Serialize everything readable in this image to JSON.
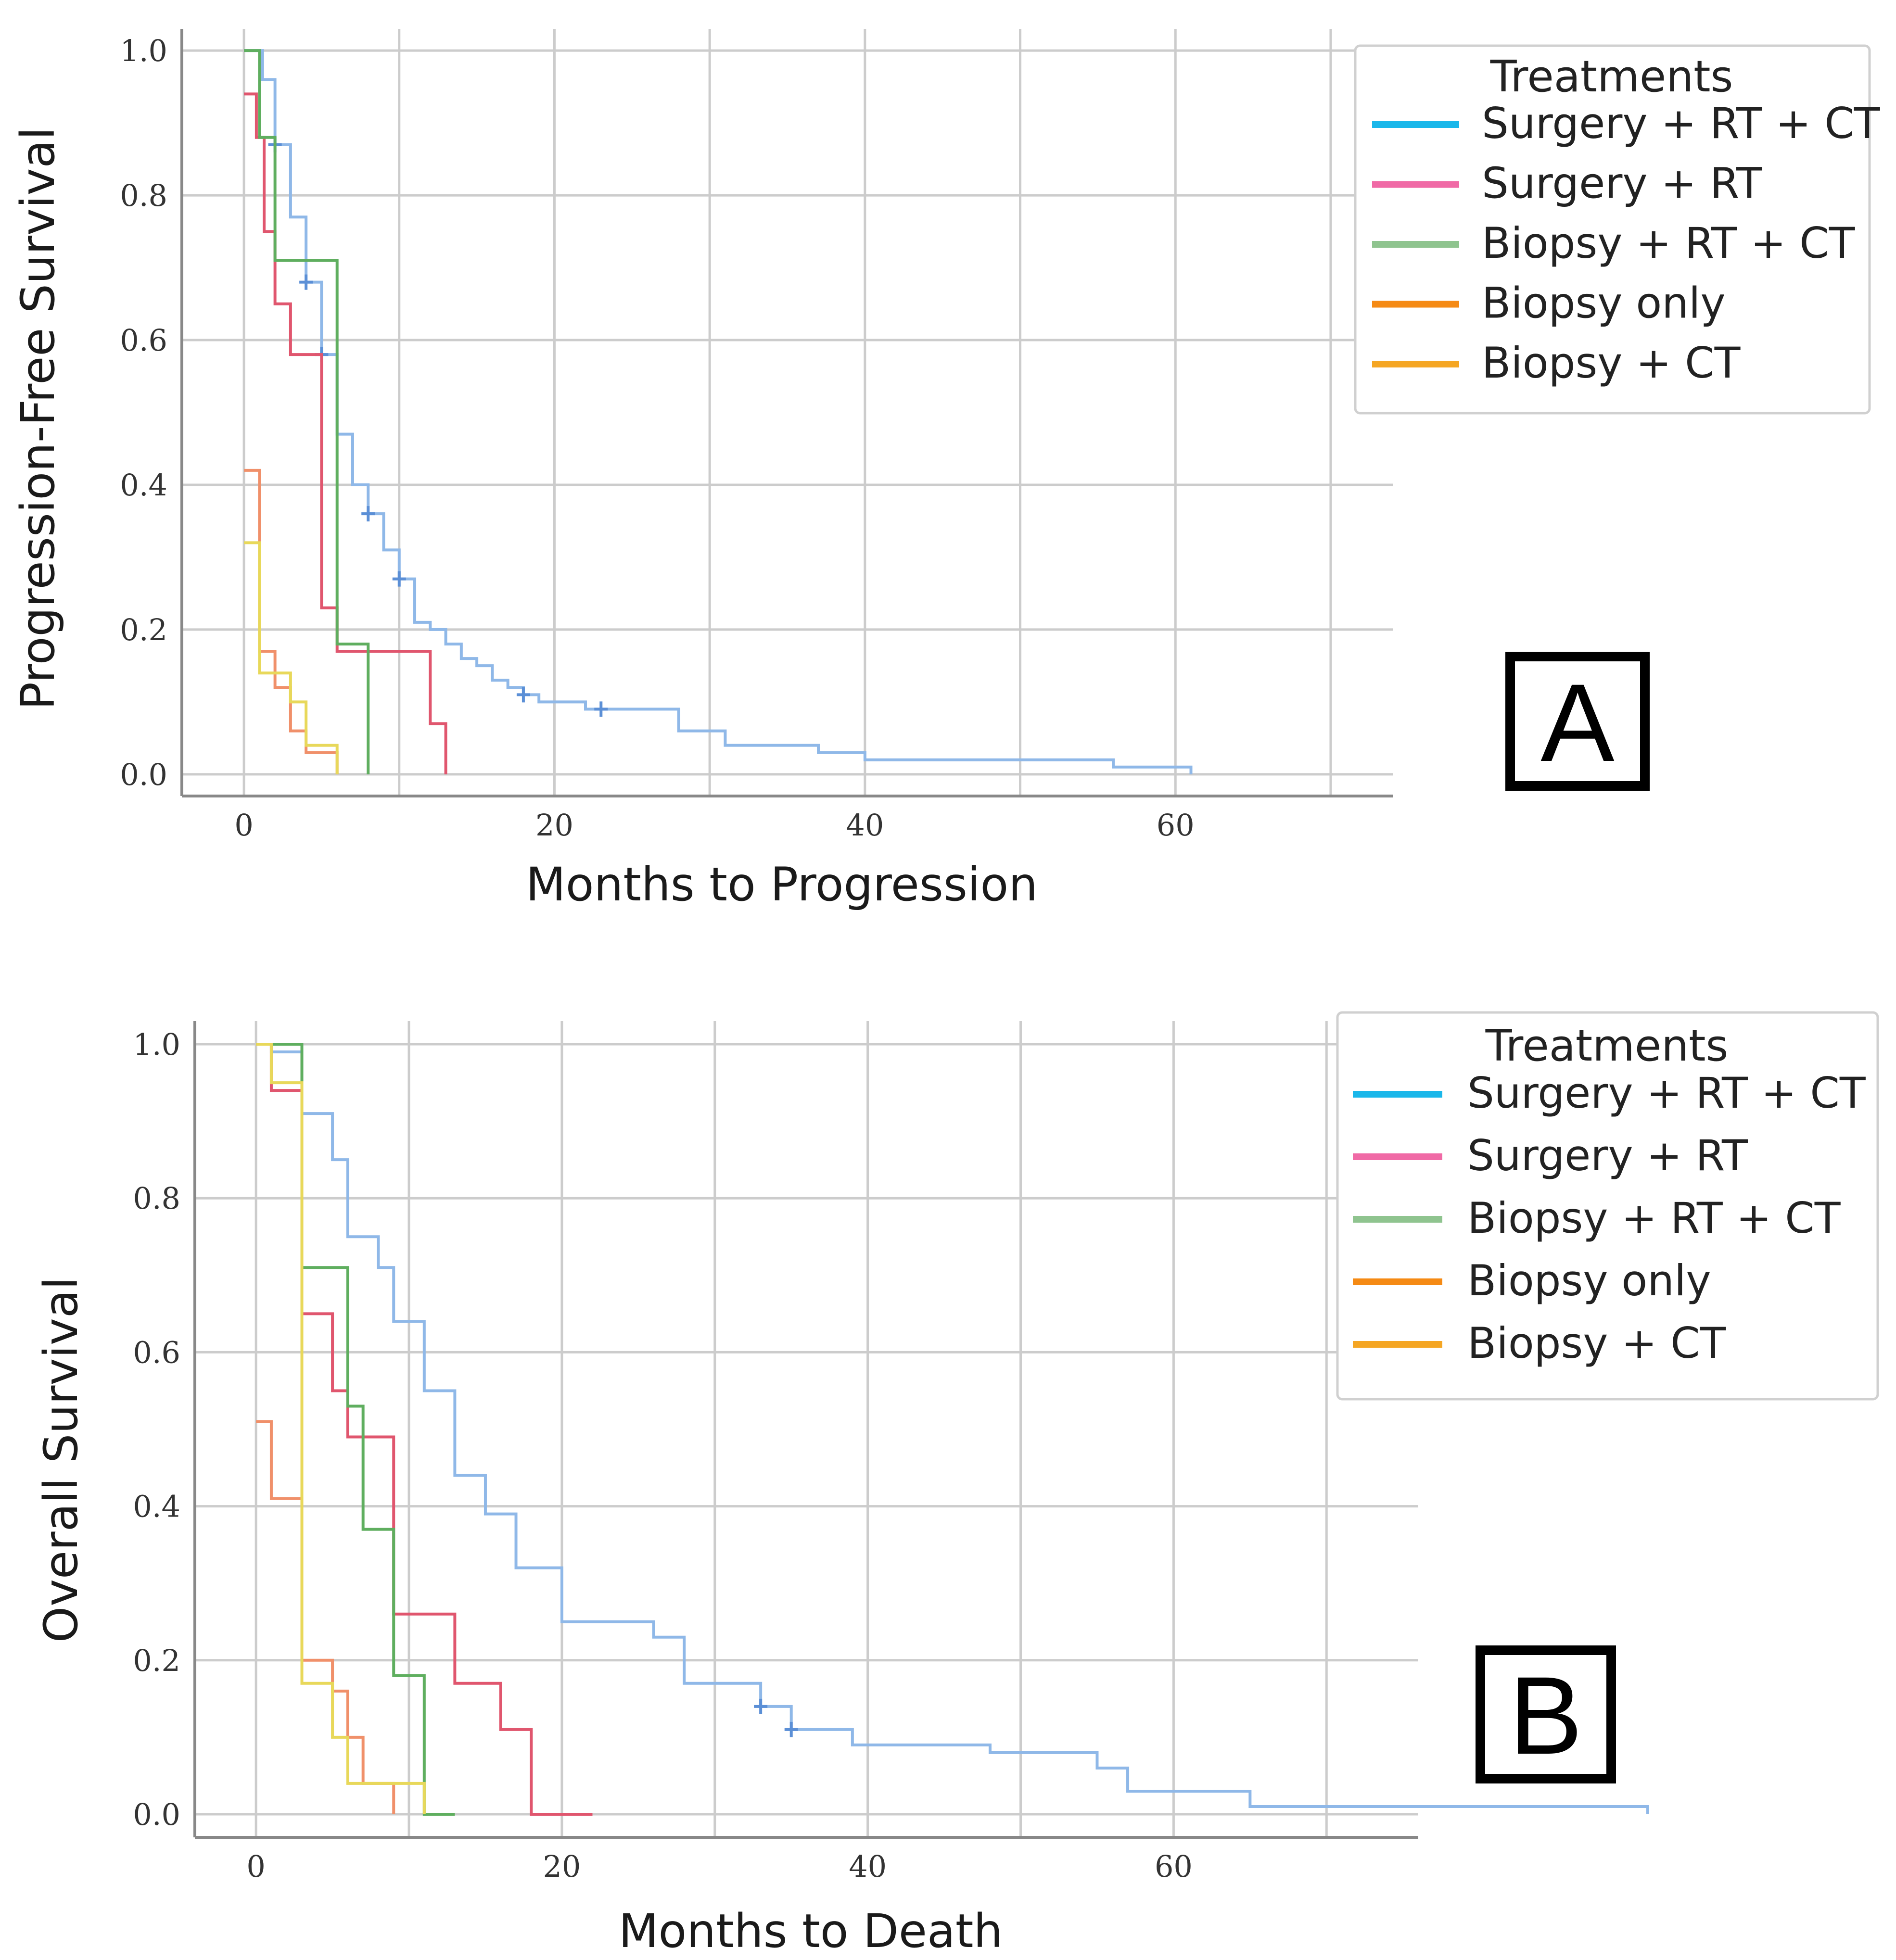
{
  "legend_title": "Treatments",
  "legend_colors": [
    "#1ab7ea",
    "#f06aa6",
    "#8fc48f",
    "#f58a14",
    "#f5a623"
  ],
  "chart_data": [
    {
      "type": "line",
      "step": true,
      "panel_label": "A",
      "xlabel": "Months to Progression",
      "ylabel": "Progression-Free Survival",
      "xlim": [
        -4,
        74
      ],
      "ylim": [
        -0.03,
        1.03
      ],
      "xticks": [
        "0",
        "20",
        "40",
        "60"
      ],
      "yticks": [
        "0.0",
        "0.2",
        "0.4",
        "0.6",
        "0.8",
        "1.0"
      ],
      "legend_entries": [
        "Surgery + RT + CT",
        "Surgery + RT",
        "Biopsy + RT + CT",
        "Biopsy only",
        "Biopsy + CT"
      ],
      "series": [
        {
          "name": "Surgery + RT + CT",
          "color": "#8fb8e8",
          "x": [
            0,
            1.2,
            2,
            3,
            4,
            5,
            6,
            7,
            8,
            9,
            10,
            11,
            12,
            13,
            14,
            15,
            16,
            17,
            18,
            19,
            20,
            22,
            25,
            28,
            31,
            37,
            40,
            56,
            61
          ],
          "y": [
            1.0,
            0.96,
            0.87,
            0.77,
            0.68,
            0.58,
            0.47,
            0.4,
            0.36,
            0.31,
            0.27,
            0.21,
            0.2,
            0.18,
            0.16,
            0.15,
            0.13,
            0.12,
            0.11,
            0.1,
            0.1,
            0.09,
            0.09,
            0.06,
            0.04,
            0.03,
            0.02,
            0.01,
            0.0
          ],
          "censor_x": [
            2,
            4,
            5,
            8,
            10,
            18,
            23
          ]
        },
        {
          "name": "Surgery + RT",
          "color": "#e0566e",
          "x": [
            0,
            0.8,
            1.3,
            2,
            3,
            5,
            6,
            8,
            12,
            13
          ],
          "y": [
            0.94,
            0.88,
            0.75,
            0.65,
            0.58,
            0.23,
            0.17,
            0.17,
            0.07,
            0.0
          ],
          "censor_x": []
        },
        {
          "name": "Biopsy + RT + CT",
          "color": "#5fae5f",
          "x": [
            0,
            1,
            2,
            6,
            8
          ],
          "y": [
            1.0,
            0.88,
            0.71,
            0.18,
            0.0
          ],
          "censor_x": []
        },
        {
          "name": "Biopsy only",
          "color": "#f0906a",
          "x": [
            0,
            1,
            2,
            3,
            4,
            6
          ],
          "y": [
            0.42,
            0.17,
            0.12,
            0.06,
            0.03,
            0.0
          ],
          "censor_x": []
        },
        {
          "name": "Biopsy + CT",
          "color": "#e8d85a",
          "x": [
            0,
            1,
            3,
            4,
            6
          ],
          "y": [
            0.32,
            0.14,
            0.1,
            0.04,
            0.0
          ],
          "censor_x": []
        }
      ]
    },
    {
      "type": "line",
      "step": true,
      "panel_label": "B",
      "xlabel": "Months to Death",
      "ylabel": "Overall Survival",
      "xlim": [
        -4,
        76
      ],
      "ylim": [
        -0.03,
        1.03
      ],
      "xticks": [
        "0",
        "20",
        "40",
        "60"
      ],
      "yticks": [
        "0.0",
        "0.2",
        "0.4",
        "0.6",
        "0.8",
        "1.0"
      ],
      "legend_entries": [
        "Surgery + RT + CT",
        "Surgery + RT",
        "Biopsy + RT + CT",
        "Biopsy only",
        "Biopsy + CT"
      ],
      "series": [
        {
          "name": "Surgery + RT + CT",
          "color": "#8fb8e8",
          "x": [
            0,
            1,
            3,
            5,
            6,
            8,
            9,
            11,
            13,
            15,
            17,
            20,
            22,
            26,
            28,
            33,
            35,
            39,
            48,
            55,
            57,
            65,
            91
          ],
          "y": [
            1.0,
            0.99,
            0.91,
            0.85,
            0.75,
            0.71,
            0.64,
            0.55,
            0.44,
            0.39,
            0.32,
            0.25,
            0.25,
            0.23,
            0.17,
            0.14,
            0.11,
            0.09,
            0.08,
            0.06,
            0.03,
            0.01,
            0.0
          ],
          "censor_x": [
            33,
            35
          ]
        },
        {
          "name": "Surgery + RT",
          "color": "#e0566e",
          "x": [
            0,
            1,
            3,
            5,
            6,
            9,
            13,
            16,
            18,
            20,
            22
          ],
          "y": [
            1.0,
            0.94,
            0.65,
            0.55,
            0.49,
            0.26,
            0.17,
            0.11,
            0.0,
            0.0,
            0.0
          ],
          "censor_x": []
        },
        {
          "name": "Biopsy + RT + CT",
          "color": "#5fae5f",
          "x": [
            0,
            3,
            6,
            7,
            9,
            11,
            13
          ],
          "y": [
            1.0,
            0.71,
            0.53,
            0.37,
            0.18,
            0.0,
            0.0
          ],
          "censor_x": []
        },
        {
          "name": "Biopsy only",
          "color": "#f0906a",
          "x": [
            0,
            1,
            3,
            5,
            6,
            7,
            9
          ],
          "y": [
            0.51,
            0.41,
            0.2,
            0.16,
            0.1,
            0.04,
            0.0
          ],
          "censor_x": []
        },
        {
          "name": "Biopsy + CT",
          "color": "#e8d85a",
          "x": [
            0,
            1,
            3,
            5,
            6,
            9,
            11
          ],
          "y": [
            1.0,
            0.95,
            0.17,
            0.1,
            0.04,
            0.04,
            0.0
          ],
          "censor_x": []
        }
      ]
    }
  ]
}
